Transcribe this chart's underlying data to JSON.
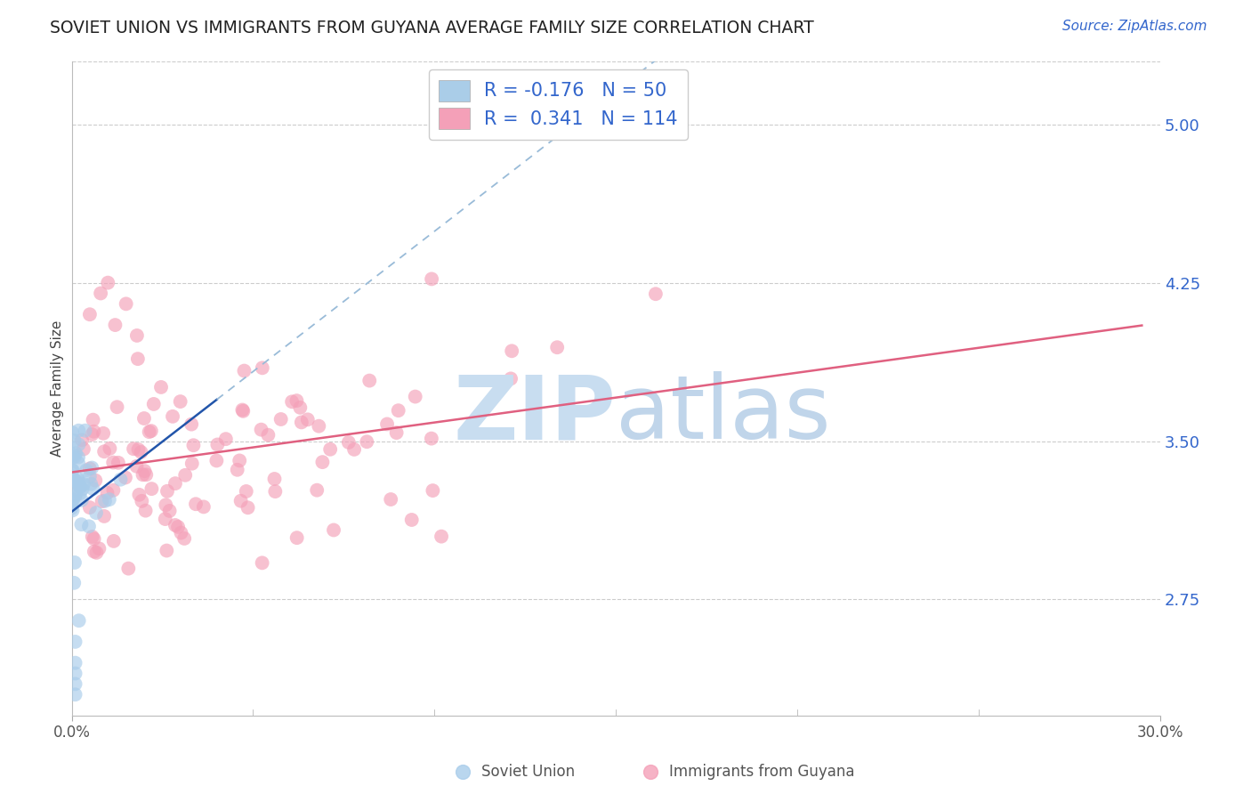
{
  "title": "SOVIET UNION VS IMMIGRANTS FROM GUYANA AVERAGE FAMILY SIZE CORRELATION CHART",
  "source": "Source: ZipAtlas.com",
  "ylabel": "Average Family Size",
  "right_yticks": [
    2.75,
    3.5,
    4.25,
    5.0
  ],
  "right_ytick_labels": [
    "2.75",
    "3.50",
    "4.25",
    "5.00"
  ],
  "ylim": [
    2.2,
    5.3
  ],
  "xlim": [
    0.0,
    0.3
  ],
  "soviet_union_color": "#a8ccea",
  "guyana_color": "#f4a0b8",
  "soviet_line_color": "#2255aa",
  "guyana_line_color": "#e06080",
  "soviet_line_dashed_color": "#99bbd8",
  "watermark_zip_color": "#c8ddf0",
  "watermark_atlas_color": "#c0d5ea",
  "title_fontsize": 13.5,
  "axis_label_fontsize": 11,
  "tick_label_fontsize": 12,
  "source_fontsize": 11,
  "soviet_R": -0.176,
  "soviet_N": 50,
  "guyana_R": 0.341,
  "guyana_N": 114,
  "legend_blue_color": "#3366cc",
  "tick_color": "#3366cc",
  "label_color": "#555555"
}
